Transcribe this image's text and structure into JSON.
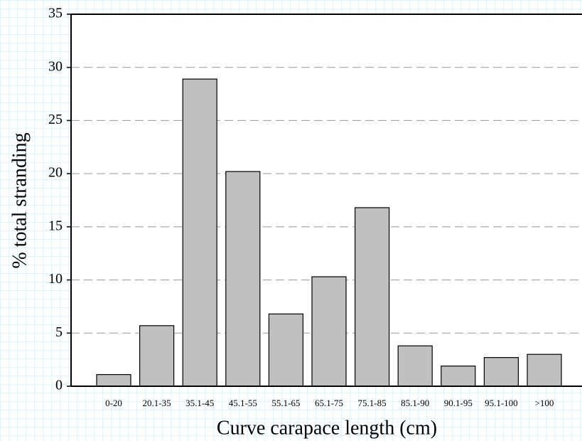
{
  "chart_data": {
    "type": "bar",
    "x_label": "Curve carapace length (cm)",
    "y_label": "% total stranding",
    "categories": [
      "0-20",
      "20.1-35",
      "35.1-45",
      "45.1-55",
      "55.1-65",
      "65.1-75",
      "75.1-85",
      "85.1-90",
      "90.1-95",
      "95.1-100",
      ">100"
    ],
    "values": [
      1.1,
      5.7,
      28.9,
      20.2,
      6.8,
      10.3,
      16.8,
      3.8,
      1.9,
      2.7,
      3.0
    ],
    "color": "#c0c0c0",
    "ylim": [
      0,
      35
    ],
    "yticks": [
      0,
      5,
      10,
      15,
      20,
      25,
      30,
      35
    ],
    "grid": true
  }
}
